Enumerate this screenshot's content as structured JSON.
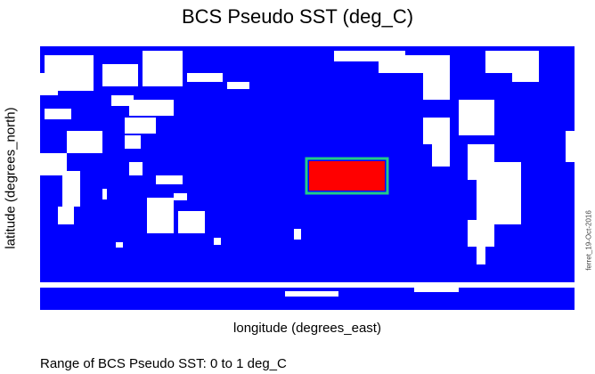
{
  "chart_data": {
    "type": "heatmap",
    "title": "BCS Pseudo SST (deg_C)",
    "xlabel": "longitude (degrees_east)",
    "ylabel": "latitude (degrees_north)",
    "range_text": "Range of BCS Pseudo SST: 0 to 1 deg_C",
    "value_range": [
      0,
      1
    ],
    "colors": {
      "ocean": "#0000ff",
      "land": "#ffffff",
      "anomaly": "#ff0000",
      "edge": "#22cc88"
    },
    "anomaly_region": {
      "lon": [
        180,
        240
      ],
      "lat": [
        -10,
        10
      ],
      "value": 1
    },
    "grid": false
  },
  "side_stamp": "ferret_19-Oct-2016"
}
